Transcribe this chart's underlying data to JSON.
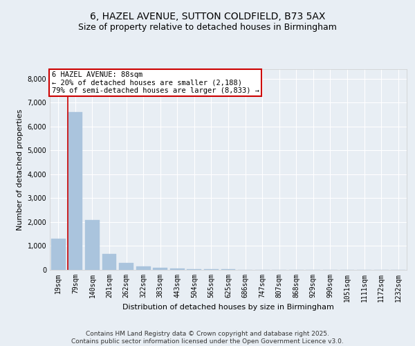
{
  "title1": "6, HAZEL AVENUE, SUTTON COLDFIELD, B73 5AX",
  "title2": "Size of property relative to detached houses in Birmingham",
  "xlabel": "Distribution of detached houses by size in Birmingham",
  "ylabel": "Number of detached properties",
  "bar_values": [
    1300,
    6600,
    2100,
    680,
    300,
    150,
    80,
    50,
    30,
    20,
    15,
    10,
    8,
    5,
    3,
    2,
    1,
    1,
    0,
    0,
    0
  ],
  "categories": [
    "19sqm",
    "79sqm",
    "140sqm",
    "201sqm",
    "262sqm",
    "322sqm",
    "383sqm",
    "443sqm",
    "504sqm",
    "565sqm",
    "625sqm",
    "686sqm",
    "747sqm",
    "807sqm",
    "868sqm",
    "929sqm",
    "990sqm",
    "1051sqm",
    "1111sqm",
    "1172sqm",
    "1232sqm"
  ],
  "bar_color": "#aac4dd",
  "bar_edge_color": "#aac4dd",
  "background_color": "#e8eef4",
  "grid_color": "#ffffff",
  "vline_color": "#cc0000",
  "annotation_text": "6 HAZEL AVENUE: 88sqm\n← 20% of detached houses are smaller (2,188)\n79% of semi-detached houses are larger (8,833) →",
  "annotation_box_color": "#ffffff",
  "annotation_box_edge_color": "#cc0000",
  "ylim": [
    0,
    8400
  ],
  "yticks": [
    0,
    1000,
    2000,
    3000,
    4000,
    5000,
    6000,
    7000,
    8000
  ],
  "footer_text": "Contains HM Land Registry data © Crown copyright and database right 2025.\nContains public sector information licensed under the Open Government Licence v3.0.",
  "title_fontsize": 10,
  "subtitle_fontsize": 9,
  "axis_label_fontsize": 8,
  "tick_fontsize": 7,
  "annotation_fontsize": 7.5,
  "footer_fontsize": 6.5
}
